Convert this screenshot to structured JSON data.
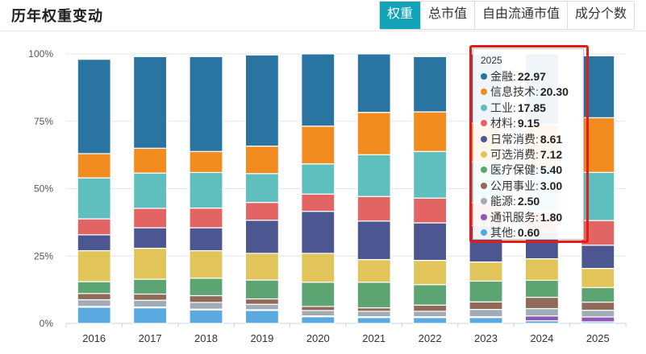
{
  "header": {
    "title": "历年权重变动",
    "tabs": [
      {
        "label": "权重",
        "active": true
      },
      {
        "label": "总市值",
        "active": false
      },
      {
        "label": "自由流通市值",
        "active": false
      },
      {
        "label": "成分个数",
        "active": false
      }
    ]
  },
  "chart_data": {
    "type": "bar",
    "stacked": true,
    "categories": [
      "2016",
      "2017",
      "2018",
      "2019",
      "2020",
      "2021",
      "2022",
      "2023",
      "2024",
      "2025"
    ],
    "y_ticks": [
      "0%",
      "25%",
      "50%",
      "75%",
      "100%"
    ],
    "ylim": [
      0,
      100
    ],
    "series": [
      {
        "name": "其他",
        "color": "#5aa9e0",
        "values": [
          6.0,
          5.8,
          5.0,
          4.8,
          2.5,
          2.2,
          2.2,
          2.2,
          1.0,
          0.6
        ]
      },
      {
        "name": "通讯服务",
        "color": "#8e59b5",
        "values": [
          0.3,
          0.3,
          0.3,
          0.3,
          0.3,
          0.3,
          0.3,
          0.3,
          1.8,
          1.8
        ]
      },
      {
        "name": "能源",
        "color": "#a2acb6",
        "values": [
          2.5,
          2.5,
          2.5,
          2.0,
          2.0,
          2.0,
          2.0,
          2.7,
          2.7,
          2.5
        ]
      },
      {
        "name": "公用事业",
        "color": "#8f6a58",
        "values": [
          2.3,
          2.3,
          2.5,
          2.0,
          1.5,
          1.3,
          2.3,
          2.8,
          4.2,
          3.0
        ]
      },
      {
        "name": "医疗保健",
        "color": "#5da473",
        "values": [
          4.4,
          5.5,
          6.5,
          7.0,
          9.0,
          9.5,
          7.6,
          7.7,
          6.3,
          5.4
        ]
      },
      {
        "name": "可选消费",
        "color": "#e2c55a",
        "values": [
          11.5,
          11.5,
          10.2,
          9.9,
          10.7,
          8.4,
          9.0,
          7.1,
          8.0,
          7.12
        ]
      },
      {
        "name": "日常消费",
        "color": "#4c5690",
        "values": [
          5.9,
          7.6,
          8.5,
          12.3,
          15.6,
          14.3,
          13.9,
          13.5,
          10.0,
          8.61
        ]
      },
      {
        "name": "材料",
        "color": "#e36563",
        "values": [
          5.9,
          7.2,
          7.3,
          6.6,
          6.4,
          9.1,
          9.2,
          8.5,
          7.5,
          9.15
        ]
      },
      {
        "name": "工业",
        "color": "#5ebfbe",
        "values": [
          15.2,
          13.1,
          13.2,
          10.7,
          11.2,
          15.5,
          17.3,
          15.2,
          16.5,
          17.85
        ]
      },
      {
        "name": "信息技术",
        "color": "#f28c1e",
        "values": [
          9.0,
          9.2,
          7.8,
          10.2,
          14.0,
          15.7,
          14.7,
          14.3,
          15.8,
          20.3
        ]
      },
      {
        "name": "金融",
        "color": "#2a74a2",
        "values": [
          35.0,
          34.0,
          35.2,
          33.8,
          26.8,
          21.7,
          20.5,
          25.7,
          26.2,
          22.97
        ]
      }
    ]
  },
  "tooltip": {
    "year": "2025",
    "rows": [
      {
        "name": "金融:",
        "value": "22.97",
        "color": "#2a74a2"
      },
      {
        "name": "信息技术:",
        "value": "20.30",
        "color": "#f28c1e"
      },
      {
        "name": "工业:",
        "value": "17.85",
        "color": "#5ebfbe"
      },
      {
        "name": "材料:",
        "value": "9.15",
        "color": "#e36563"
      },
      {
        "name": "日常消费:",
        "value": "8.61",
        "color": "#4c5690"
      },
      {
        "name": "可选消费:",
        "value": "7.12",
        "color": "#e2c55a"
      },
      {
        "name": "医疗保健:",
        "value": "5.40",
        "color": "#5da473"
      },
      {
        "name": "公用事业:",
        "value": "3.00",
        "color": "#8f6a58"
      },
      {
        "name": "能源:",
        "value": "2.50",
        "color": "#a2acb6"
      },
      {
        "name": "通讯服务:",
        "value": "1.80",
        "color": "#8e59b5"
      },
      {
        "name": "其他:",
        "value": "0.60",
        "color": "#5aa9e0"
      }
    ]
  }
}
